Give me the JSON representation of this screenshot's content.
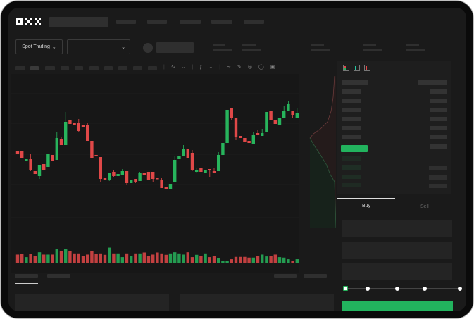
{
  "brand": {
    "logo": "OKX"
  },
  "header": {
    "mode_selector": "Spot Trading"
  },
  "order_form": {
    "tabs": [
      {
        "label": "Buy",
        "active": true
      },
      {
        "label": "Sell",
        "active": false
      }
    ],
    "leverage_slider": {
      "value": 0,
      "stops": 5
    }
  },
  "colors": {
    "up": "#27b45c",
    "down": "#e04848",
    "background": "#1a1a1a",
    "accent": "#22b35e"
  },
  "icons": [
    "okx-logo",
    "chevron-down-icon",
    "orderbook-both-icon",
    "orderbook-bids-icon",
    "orderbook-asks-icon",
    "indicator-icon",
    "draw-line-icon",
    "pencil-icon",
    "circle-icon",
    "settings-icon"
  ],
  "chart_data": {
    "type": "candlestick",
    "grid": true,
    "ohlc": [
      [
        67,
        67,
        63,
        63
      ],
      [
        67,
        67,
        56,
        56
      ],
      [
        53,
        55,
        53,
        55
      ],
      [
        55,
        62,
        38,
        40
      ],
      [
        38,
        38,
        34,
        34
      ],
      [
        31,
        47,
        27,
        47
      ],
      [
        48,
        48,
        40,
        40
      ],
      [
        44,
        62,
        44,
        62
      ],
      [
        61,
        61,
        53,
        53
      ],
      [
        54,
        94,
        54,
        85
      ],
      [
        84,
        87,
        75,
        75
      ],
      [
        75,
        122,
        75,
        108
      ],
      [
        110,
        110,
        105,
        105
      ],
      [
        107,
        107,
        103,
        103
      ],
      [
        107,
        112,
        93,
        95
      ],
      [
        103,
        103,
        100,
        100
      ],
      [
        104,
        107,
        81,
        81
      ],
      [
        81,
        81,
        57,
        57
      ],
      [
        61,
        61,
        59,
        59
      ],
      [
        58,
        58,
        22,
        27
      ],
      [
        28,
        28,
        26,
        26
      ],
      [
        26,
        36,
        24,
        36
      ],
      [
        37,
        39,
        30,
        31
      ],
      [
        31,
        34,
        27,
        34
      ],
      [
        33,
        41,
        33,
        38
      ],
      [
        38,
        38,
        18,
        21
      ],
      [
        21,
        25,
        21,
        25
      ],
      [
        27,
        27,
        21,
        23
      ],
      [
        24,
        37,
        24,
        35
      ],
      [
        36,
        36,
        33,
        33
      ],
      [
        37,
        37,
        26,
        26
      ],
      [
        37,
        37,
        23,
        27
      ],
      [
        28,
        28,
        27,
        27
      ],
      [
        26,
        28,
        14,
        14
      ],
      [
        15,
        15,
        13,
        13
      ],
      [
        13,
        20,
        13,
        20
      ],
      [
        22,
        60,
        22,
        54
      ],
      [
        55,
        60,
        55,
        60
      ],
      [
        60,
        75,
        60,
        70
      ],
      [
        69,
        69,
        57,
        57
      ],
      [
        64,
        68,
        38,
        40
      ],
      [
        37,
        42,
        35,
        40
      ],
      [
        42,
        42,
        37,
        37
      ],
      [
        35,
        39,
        35,
        39
      ],
      [
        41,
        41,
        30,
        39
      ],
      [
        38,
        43,
        36,
        36
      ],
      [
        38,
        65,
        38,
        61
      ],
      [
        61,
        81,
        61,
        78
      ],
      [
        78,
        141,
        78,
        125
      ],
      [
        127,
        128,
        111,
        113
      ],
      [
        113,
        113,
        82,
        86
      ],
      [
        88,
        88,
        85,
        85
      ],
      [
        85,
        85,
        79,
        79
      ],
      [
        81,
        83,
        78,
        78
      ],
      [
        76,
        93,
        76,
        90
      ],
      [
        92,
        96,
        90,
        90
      ],
      [
        88,
        98,
        88,
        92
      ],
      [
        93,
        122,
        93,
        122
      ],
      [
        124,
        124,
        111,
        111
      ],
      [
        111,
        111,
        105,
        105
      ],
      [
        103,
        113,
        103,
        113
      ],
      [
        113,
        131,
        113,
        123
      ],
      [
        123,
        138,
        123,
        133
      ],
      [
        124,
        124,
        113,
        117
      ],
      [
        114,
        128,
        114,
        121
      ]
    ],
    "volume": [
      38,
      42,
      27,
      42,
      32,
      48,
      38,
      38,
      38,
      62,
      52,
      62,
      52,
      43,
      43,
      32,
      38,
      52,
      42,
      43,
      37,
      68,
      43,
      43,
      27,
      43,
      32,
      43,
      43,
      47,
      32,
      38,
      47,
      43,
      37,
      43,
      48,
      43,
      38,
      48,
      27,
      37,
      32,
      43,
      27,
      32,
      22,
      12,
      12,
      18,
      28,
      28,
      28,
      25,
      25,
      32,
      38,
      30,
      32,
      38,
      27,
      25,
      18,
      12,
      18
    ]
  }
}
